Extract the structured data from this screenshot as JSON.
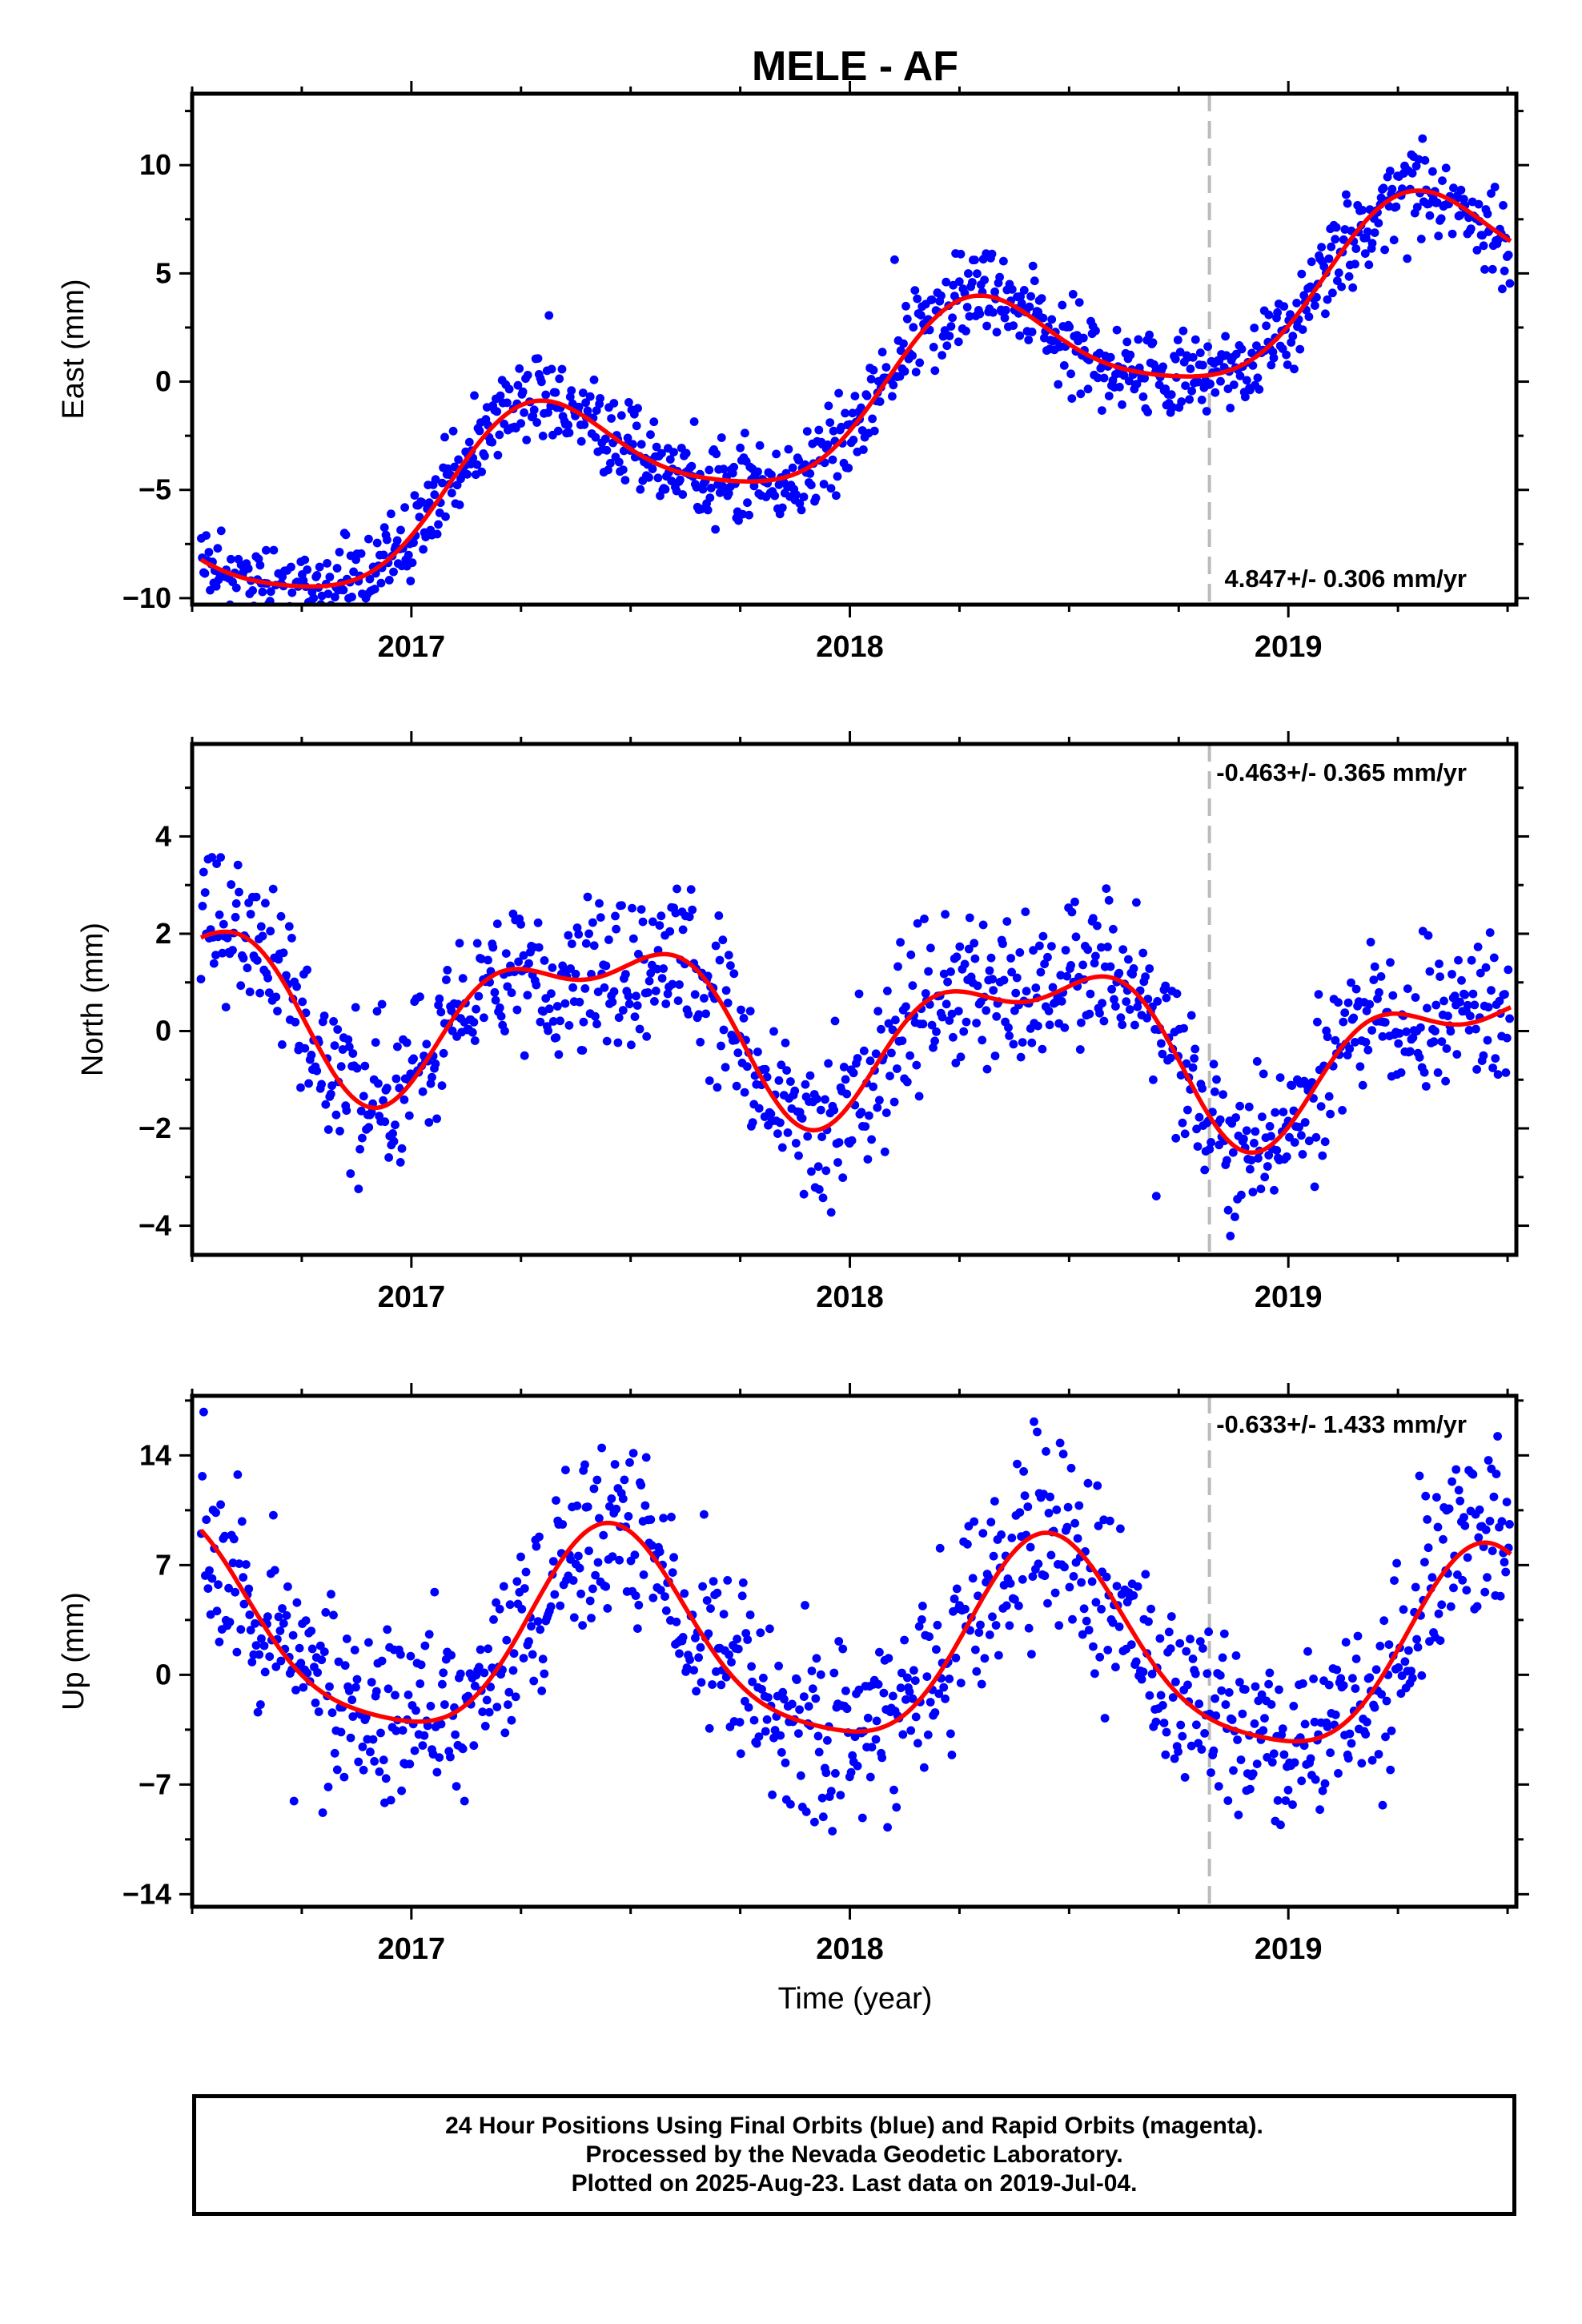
{
  "colors": {
    "points": "#0000ff",
    "fit": "#ff0000",
    "reference_line": "#bbbbbb",
    "frame": "#000000"
  },
  "chart_data": {
    "type": "scatter",
    "title": "MELE - AF",
    "xlabel": "Time (year)",
    "xlim": [
      2016.5,
      2019.52
    ],
    "x_ticks": [
      2017,
      2018,
      2019
    ],
    "x_tick_labels": [
      "2017",
      "2018",
      "2019"
    ],
    "reference_line_x": 2018.82,
    "data_start": 2016.52,
    "data_end": 2019.507,
    "panels": [
      {
        "id": "east",
        "ylabel": "East (mm)",
        "ylim": [
          -10.3,
          13.3
        ],
        "y_ticks": [
          -10,
          -5,
          0,
          5,
          10
        ],
        "y_tick_labels": [
          "−10",
          "−5",
          "0",
          "5",
          "10"
        ],
        "rate_text": "4.847+/- 0.306 mm/yr",
        "rate_position": "bottom-right",
        "model": {
          "linear_rate": 4.85,
          "intercept_2018": -0.95,
          "annual": [
            -0.79,
            2.97
          ],
          "semiannual": [
            -0.53,
            0.05
          ]
        },
        "noise": 1.0,
        "n_points": 1050,
        "seed": 11
      },
      {
        "id": "north",
        "ylabel": "North (mm)",
        "ylim": [
          -4.6,
          5.9
        ],
        "y_ticks": [
          -4,
          -2,
          0,
          2,
          4
        ],
        "y_tick_labels": [
          "−4",
          "−2",
          "0",
          "2",
          "4"
        ],
        "rate_text": "-0.463+/- 0.365 mm/yr",
        "rate_position": "top-right",
        "model": {
          "linear_rate": -0.46,
          "intercept_2018": 0.08,
          "annual": [
            -1.33,
            0.59
          ],
          "semiannual": [
            -0.26,
            0.67
          ]
        },
        "noise": 0.75,
        "n_points": 1000,
        "seed": 23
      },
      {
        "id": "up",
        "ylabel": "Up (mm)",
        "ylim": [
          -14.8,
          17.8
        ],
        "y_ticks": [
          -14,
          -7,
          0,
          7,
          14
        ],
        "y_tick_labels": [
          "−14",
          "−7",
          "0",
          "7",
          "14"
        ],
        "rate_text": "-0.633+/- 1.433 mm/yr",
        "rate_position": "top-right",
        "model": {
          "linear_rate": -0.63,
          "intercept_2018": 1.7,
          "annual": [
            -6.2,
            1.6
          ],
          "semiannual": [
            0.9,
            -0.9
          ]
        },
        "noise": 3.0,
        "n_points": 1000,
        "seed": 37
      }
    ]
  },
  "caption": {
    "line1": "24 Hour Positions Using Final Orbits (blue) and Rapid Orbits (magenta).",
    "line2": "Processed by the Nevada Geodetic Laboratory.",
    "line3": "Plotted on 2025-Aug-23. Last data on 2019-Jul-04."
  }
}
